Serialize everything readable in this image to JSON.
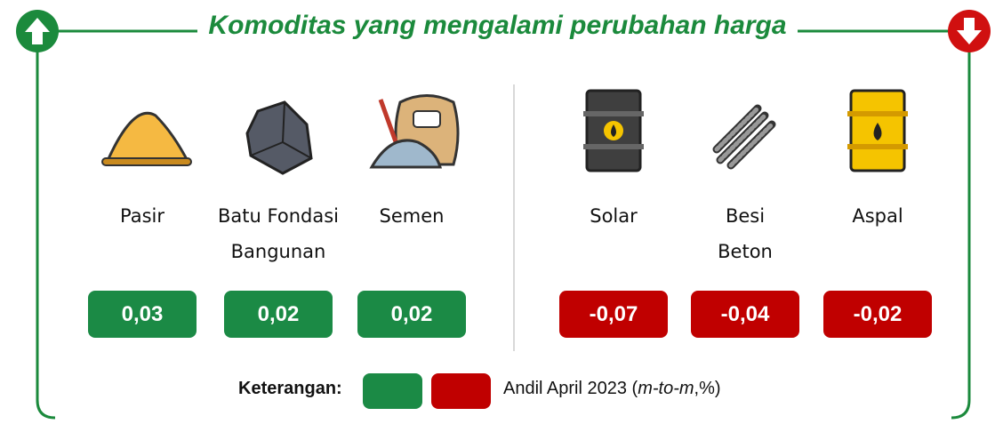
{
  "header": {
    "title": "Komoditas yang mengalami perubahan harga"
  },
  "up_items": [
    {
      "name": [
        "Pasir"
      ],
      "value": "0,03"
    },
    {
      "name": [
        "Batu Fondasi",
        "Bangunan"
      ],
      "value": "0,02"
    },
    {
      "name": [
        "Semen"
      ],
      "value": "0,02"
    }
  ],
  "down_items": [
    {
      "name": [
        "Solar"
      ],
      "value": "-0,07"
    },
    {
      "name": [
        "Besi",
        "Beton"
      ],
      "value": "-0,04"
    },
    {
      "name": [
        "Aspal"
      ],
      "value": "-0,02"
    }
  ],
  "legend": {
    "label": "Keterangan:",
    "text": [
      "Andil April 2023 (",
      "m-to-m",
      ",%)"
    ]
  }
}
